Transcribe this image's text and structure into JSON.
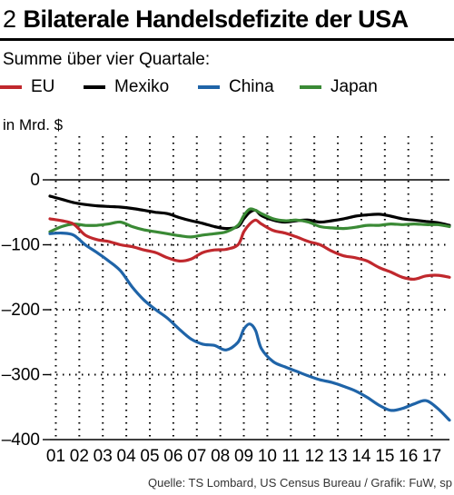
{
  "header": {
    "number": "2",
    "title": "Bilaterale Handelsdefizite der USA"
  },
  "subtitle": "Summe über vier Quartale:",
  "legend": [
    {
      "name": "EU",
      "color": "#c0282d"
    },
    {
      "name": "Mexiko",
      "color": "#000000"
    },
    {
      "name": "China",
      "color": "#1f64a8"
    },
    {
      "name": "Japan",
      "color": "#3a8a35"
    }
  ],
  "y_unit": "in Mrd. $",
  "source": "Quelle: TS Lombard, US Census Bureau / Grafik: FuW, sp",
  "chart_data": {
    "type": "line",
    "ylim": [
      -400,
      0
    ],
    "yticks": [
      0,
      -100,
      -200,
      -300,
      -400
    ],
    "ytick_labels": [
      "0",
      "–100",
      "–200",
      "–300",
      "–400"
    ],
    "xlim": [
      2000.75,
      2017.75
    ],
    "xtick_labels": [
      "01",
      "02",
      "03",
      "04",
      "05",
      "06",
      "07",
      "08",
      "09",
      "10",
      "11",
      "12",
      "13",
      "14",
      "15",
      "16",
      "17"
    ],
    "grid": true,
    "series": [
      {
        "name": "EU",
        "color": "#c0282d",
        "x": [
          2000.75,
          2001.25,
          2001.75,
          2002.25,
          2002.75,
          2003.25,
          2003.75,
          2004.25,
          2004.75,
          2005.25,
          2005.75,
          2006.25,
          2006.75,
          2007.25,
          2007.75,
          2008.25,
          2008.75,
          2009.0,
          2009.25,
          2009.5,
          2009.75,
          2010.25,
          2010.75,
          2011.25,
          2011.75,
          2012.25,
          2012.75,
          2013.25,
          2013.75,
          2014.25,
          2014.75,
          2015.25,
          2015.75,
          2016.25,
          2016.75,
          2017.25,
          2017.75
        ],
        "values": [
          -60,
          -63,
          -68,
          -85,
          -92,
          -95,
          -100,
          -103,
          -108,
          -112,
          -120,
          -125,
          -122,
          -112,
          -108,
          -107,
          -100,
          -80,
          -68,
          -62,
          -68,
          -78,
          -82,
          -88,
          -95,
          -100,
          -110,
          -117,
          -120,
          -125,
          -135,
          -142,
          -150,
          -153,
          -148,
          -147,
          -150
        ]
      },
      {
        "name": "Mexiko",
        "color": "#000000",
        "x": [
          2000.75,
          2001.25,
          2001.75,
          2002.25,
          2002.75,
          2003.25,
          2003.75,
          2004.25,
          2004.75,
          2005.25,
          2005.75,
          2006.25,
          2006.75,
          2007.25,
          2007.75,
          2008.25,
          2008.75,
          2009.0,
          2009.25,
          2009.5,
          2009.75,
          2010.25,
          2010.75,
          2011.25,
          2011.75,
          2012.25,
          2012.75,
          2013.25,
          2013.75,
          2014.25,
          2014.75,
          2015.25,
          2015.75,
          2016.25,
          2016.75,
          2017.25,
          2017.75
        ],
        "values": [
          -25,
          -30,
          -35,
          -38,
          -40,
          -41,
          -42,
          -44,
          -47,
          -50,
          -52,
          -58,
          -63,
          -67,
          -72,
          -75,
          -72,
          -60,
          -50,
          -47,
          -55,
          -62,
          -65,
          -63,
          -62,
          -65,
          -63,
          -60,
          -56,
          -54,
          -53,
          -56,
          -60,
          -62,
          -64,
          -66,
          -70
        ]
      },
      {
        "name": "China",
        "color": "#1f64a8",
        "x": [
          2000.75,
          2001.25,
          2001.75,
          2002.25,
          2002.75,
          2003.25,
          2003.75,
          2004.25,
          2004.75,
          2005.25,
          2005.75,
          2006.25,
          2006.75,
          2007.25,
          2007.75,
          2008.25,
          2008.75,
          2009.0,
          2009.25,
          2009.5,
          2009.75,
          2010.25,
          2010.75,
          2011.25,
          2011.75,
          2012.25,
          2012.75,
          2013.25,
          2013.75,
          2014.25,
          2014.75,
          2015.25,
          2015.75,
          2016.25,
          2016.75,
          2017.25,
          2017.75
        ],
        "values": [
          -83,
          -82,
          -85,
          -100,
          -112,
          -125,
          -140,
          -165,
          -185,
          -200,
          -213,
          -230,
          -245,
          -253,
          -255,
          -262,
          -250,
          -230,
          -222,
          -232,
          -260,
          -280,
          -288,
          -295,
          -302,
          -308,
          -312,
          -318,
          -325,
          -335,
          -347,
          -355,
          -352,
          -345,
          -340,
          -352,
          -370
        ]
      },
      {
        "name": "Japan",
        "color": "#3a8a35",
        "x": [
          2000.75,
          2001.25,
          2001.75,
          2002.25,
          2002.75,
          2003.25,
          2003.75,
          2004.25,
          2004.75,
          2005.25,
          2005.75,
          2006.25,
          2006.75,
          2007.25,
          2007.75,
          2008.25,
          2008.75,
          2009.0,
          2009.25,
          2009.5,
          2009.75,
          2010.25,
          2010.75,
          2011.25,
          2011.75,
          2012.25,
          2012.75,
          2013.25,
          2013.75,
          2014.25,
          2014.75,
          2015.25,
          2015.75,
          2016.25,
          2016.75,
          2017.25,
          2017.75
        ],
        "values": [
          -80,
          -72,
          -68,
          -70,
          -70,
          -68,
          -65,
          -72,
          -77,
          -80,
          -83,
          -86,
          -88,
          -85,
          -83,
          -80,
          -70,
          -55,
          -45,
          -47,
          -52,
          -60,
          -63,
          -62,
          -65,
          -72,
          -74,
          -75,
          -73,
          -70,
          -70,
          -68,
          -69,
          -68,
          -69,
          -69,
          -72
        ]
      }
    ]
  }
}
